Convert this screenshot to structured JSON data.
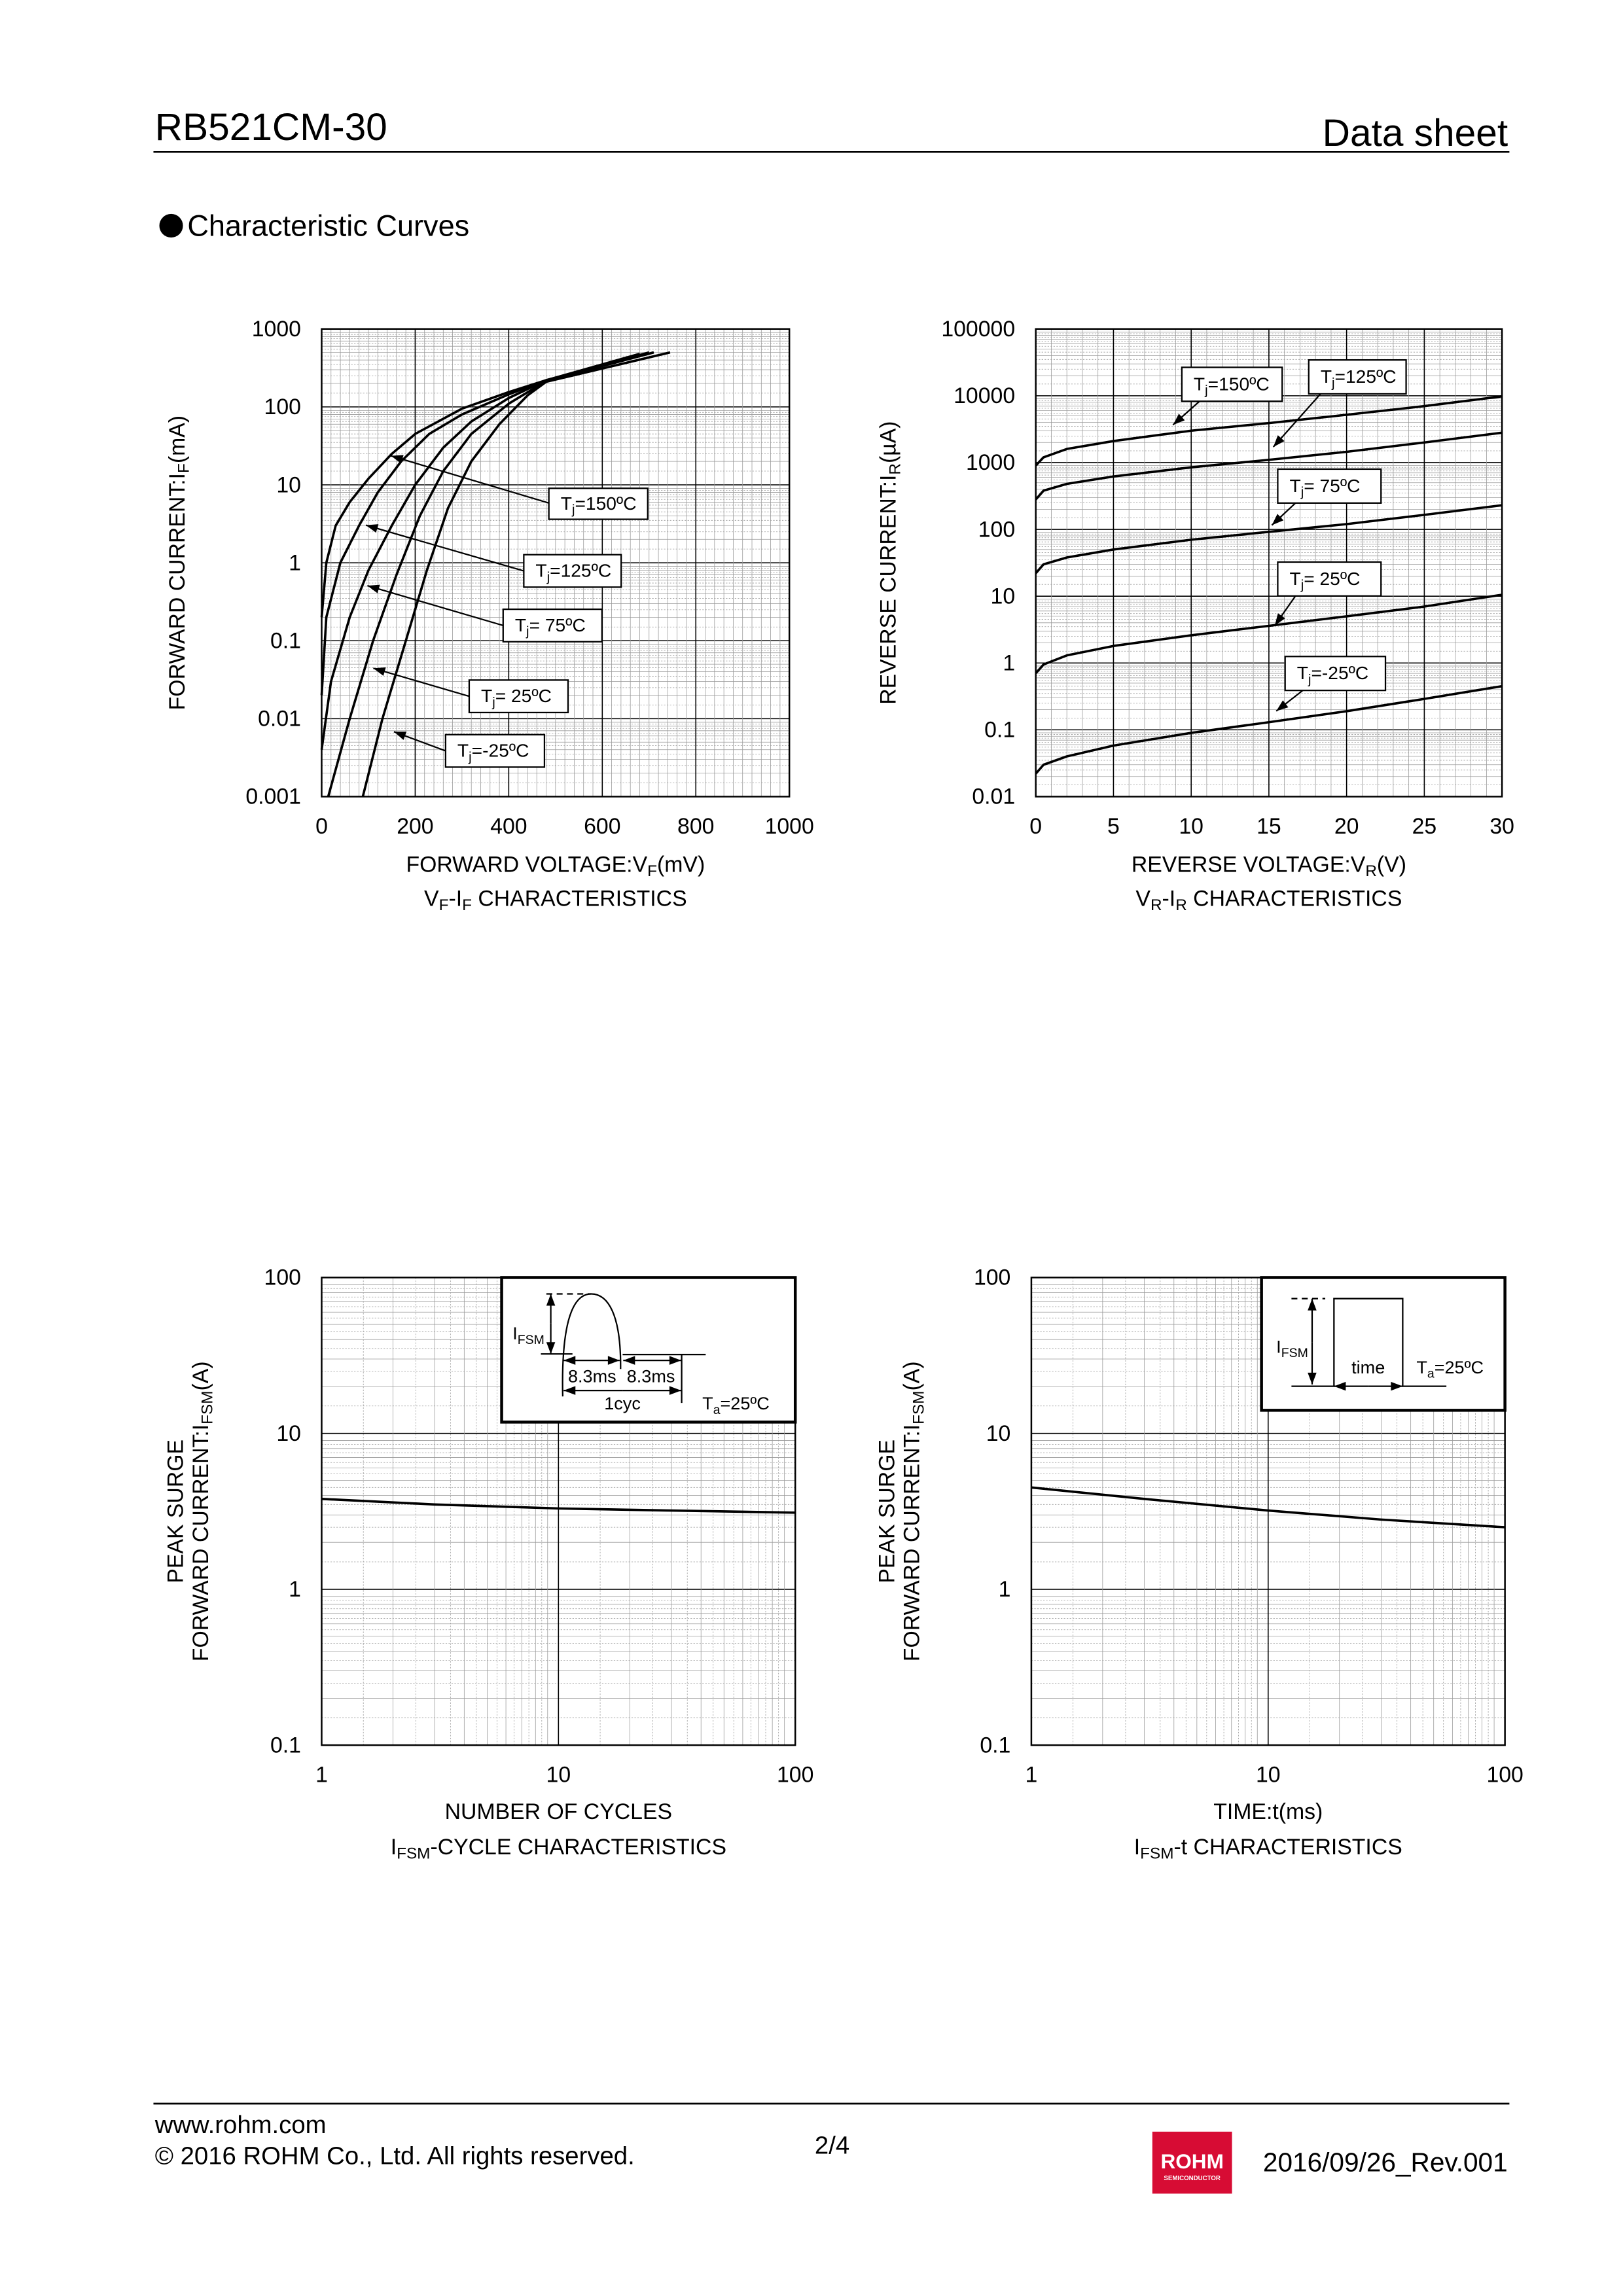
{
  "header": {
    "part_number": "RB521CM-30",
    "doc_type": "Data sheet"
  },
  "section_title": "Characteristic Curves",
  "chart_data": [
    {
      "type": "line",
      "xscale": "linear",
      "yscale": "log",
      "xlim": [
        0,
        1000
      ],
      "ylim": [
        0.001,
        1000
      ],
      "xticks": [
        0,
        200,
        400,
        600,
        800,
        1000
      ],
      "yticks": [
        0.001,
        0.01,
        0.1,
        1,
        10,
        100,
        1000
      ],
      "xlabel": [
        "FORWARD VOLTAGE:V",
        "F",
        "(mV)"
      ],
      "ylabel": [
        [
          "FORWARD CURRENT:I",
          "F",
          "(mA)"
        ]
      ],
      "title": [
        "V",
        "F",
        "-I",
        "F",
        " CHARACTERISTICS"
      ],
      "grid": true,
      "series": [
        {
          "label": [
            "T",
            "j",
            "=150ºC"
          ],
          "points": [
            [
              0,
              0.2
            ],
            [
              10,
              1
            ],
            [
              30,
              3
            ],
            [
              60,
              6
            ],
            [
              100,
              12
            ],
            [
              150,
              25
            ],
            [
              200,
              45
            ],
            [
              300,
              95
            ],
            [
              400,
              155
            ],
            [
              480,
              220
            ],
            [
              680,
              480
            ]
          ]
        },
        {
          "label": [
            "T",
            "j",
            "=125ºC"
          ],
          "points": [
            [
              0,
              0.02
            ],
            [
              10,
              0.2
            ],
            [
              40,
              1
            ],
            [
              80,
              3
            ],
            [
              120,
              8
            ],
            [
              170,
              20
            ],
            [
              230,
              45
            ],
            [
              300,
              80
            ],
            [
              400,
              145
            ],
            [
              480,
              220
            ],
            [
              700,
              500
            ]
          ]
        },
        {
          "label": [
            "T",
            "j",
            "= 75ºC"
          ],
          "points": [
            [
              0,
              0.004
            ],
            [
              20,
              0.03
            ],
            [
              60,
              0.2
            ],
            [
              100,
              0.8
            ],
            [
              150,
              3
            ],
            [
              200,
              10
            ],
            [
              260,
              30
            ],
            [
              320,
              65
            ],
            [
              400,
              130
            ],
            [
              480,
              220
            ],
            [
              710,
              500
            ]
          ]
        },
        {
          "label": [
            "T",
            "j",
            "= 25ºC"
          ],
          "points": [
            [
              14,
              0.001
            ],
            [
              60,
              0.01
            ],
            [
              110,
              0.1
            ],
            [
              160,
              0.7
            ],
            [
              210,
              4
            ],
            [
              260,
              15
            ],
            [
              320,
              45
            ],
            [
              400,
              110
            ],
            [
              480,
              215
            ],
            [
              710,
              500
            ]
          ]
        },
        {
          "label": [
            "T",
            "j",
            "=-25ºC"
          ],
          "points": [
            [
              88,
              0.001
            ],
            [
              130,
              0.01
            ],
            [
              180,
              0.1
            ],
            [
              225,
              0.8
            ],
            [
              270,
              5
            ],
            [
              320,
              20
            ],
            [
              380,
              60
            ],
            [
              440,
              140
            ],
            [
              480,
              210
            ],
            [
              745,
              500
            ]
          ]
        }
      ]
    },
    {
      "type": "line",
      "xscale": "linear",
      "yscale": "log",
      "xlim": [
        0,
        30
      ],
      "ylim": [
        0.01,
        100000
      ],
      "xticks": [
        0,
        5,
        10,
        15,
        20,
        25,
        30
      ],
      "yticks": [
        0.01,
        0.1,
        1,
        10,
        100,
        1000,
        10000,
        100000
      ],
      "xlabel": [
        "REVERSE VOLTAGE:V",
        "R",
        "(V)"
      ],
      "ylabel": [
        [
          "REVERSE CURRENT:I",
          "R",
          "(µA)"
        ]
      ],
      "title": [
        "V",
        "R",
        "-I",
        "R",
        " CHARACTERISTICS"
      ],
      "grid": true,
      "series": [
        {
          "label": [
            "T",
            "j",
            "=150ºC"
          ],
          "points": [
            [
              0,
              900
            ],
            [
              0.5,
              1200
            ],
            [
              2,
              1600
            ],
            [
              5,
              2100
            ],
            [
              10,
              3000
            ],
            [
              15,
              3900
            ],
            [
              20,
              5200
            ],
            [
              25,
              7000
            ],
            [
              30,
              9800
            ]
          ]
        },
        {
          "label": [
            "T",
            "j",
            "=125ºC"
          ],
          "points": [
            [
              0,
              280
            ],
            [
              0.5,
              380
            ],
            [
              2,
              480
            ],
            [
              5,
              620
            ],
            [
              10,
              850
            ],
            [
              15,
              1100
            ],
            [
              20,
              1450
            ],
            [
              25,
              2000
            ],
            [
              30,
              2800
            ]
          ]
        },
        {
          "label": [
            "T",
            "j",
            "= 75ºC"
          ],
          "points": [
            [
              0,
              22
            ],
            [
              0.5,
              30
            ],
            [
              2,
              38
            ],
            [
              5,
              50
            ],
            [
              10,
              70
            ],
            [
              15,
              92
            ],
            [
              20,
              120
            ],
            [
              25,
              165
            ],
            [
              30,
              230
            ]
          ]
        },
        {
          "label": [
            "T",
            "j",
            "= 25ºC"
          ],
          "points": [
            [
              0,
              0.7
            ],
            [
              0.5,
              0.95
            ],
            [
              2,
              1.3
            ],
            [
              5,
              1.8
            ],
            [
              10,
              2.6
            ],
            [
              15,
              3.6
            ],
            [
              20,
              5
            ],
            [
              25,
              7
            ],
            [
              30,
              10.5
            ]
          ]
        },
        {
          "label": [
            "T",
            "j",
            "=-25ºC"
          ],
          "points": [
            [
              0,
              0.022
            ],
            [
              0.5,
              0.03
            ],
            [
              2,
              0.04
            ],
            [
              5,
              0.058
            ],
            [
              10,
              0.09
            ],
            [
              15,
              0.13
            ],
            [
              20,
              0.19
            ],
            [
              25,
              0.29
            ],
            [
              30,
              0.45
            ]
          ]
        }
      ]
    },
    {
      "type": "line",
      "xscale": "log",
      "yscale": "log",
      "xlim": [
        1,
        100
      ],
      "ylim": [
        0.1,
        100
      ],
      "xticks": [
        1,
        10,
        100
      ],
      "yticks": [
        0.1,
        1,
        10,
        100
      ],
      "xlabel": [
        "NUMBER OF CYCLES"
      ],
      "ylabel": [
        [
          "PEAK SURGE"
        ],
        [
          "FORWARD CURRENT:I",
          "FSM",
          "(A)"
        ]
      ],
      "title": [
        "I",
        "FSM",
        "-CYCLE CHARACTERISTICS"
      ],
      "grid": true,
      "series": [
        {
          "points": [
            [
              1,
              3.8
            ],
            [
              3,
              3.5
            ],
            [
              10,
              3.3
            ],
            [
              30,
              3.2
            ],
            [
              100,
              3.1
            ]
          ]
        }
      ],
      "inset": {
        "ifsm": [
          "I",
          "FSM"
        ],
        "half1": "8.3ms",
        "half2": "8.3ms",
        "cycle": "1cyc",
        "ta": [
          "T",
          "a",
          "=25ºC"
        ]
      }
    },
    {
      "type": "line",
      "xscale": "log",
      "yscale": "log",
      "xlim": [
        1,
        100
      ],
      "ylim": [
        0.1,
        100
      ],
      "xticks": [
        1,
        10,
        100
      ],
      "yticks": [
        0.1,
        1,
        10,
        100
      ],
      "xlabel": [
        "TIME:t(ms)"
      ],
      "ylabel": [
        [
          "PEAK SURGE"
        ],
        [
          "FORWARD CURRENT:I",
          "FSM",
          "(A)"
        ]
      ],
      "title": [
        "I",
        "FSM",
        "-t CHARACTERISTICS"
      ],
      "grid": true,
      "series": [
        {
          "points": [
            [
              1,
              4.5
            ],
            [
              3,
              3.8
            ],
            [
              10,
              3.2
            ],
            [
              30,
              2.8
            ],
            [
              100,
              2.5
            ]
          ]
        }
      ],
      "inset": {
        "ifsm": [
          "I",
          "FSM"
        ],
        "time": "time",
        "ta": [
          "T",
          "a",
          "=25ºC"
        ]
      }
    }
  ],
  "footer": {
    "url": "www.rohm.com",
    "copyright": "© 2016 ROHM Co., Ltd. All rights reserved.",
    "page": "2/4",
    "logo_text": "ROHM",
    "logo_subtext": "SEMICONDUCTOR",
    "logo_color": "#d70c34",
    "revision": "2016/09/26_Rev.001"
  }
}
